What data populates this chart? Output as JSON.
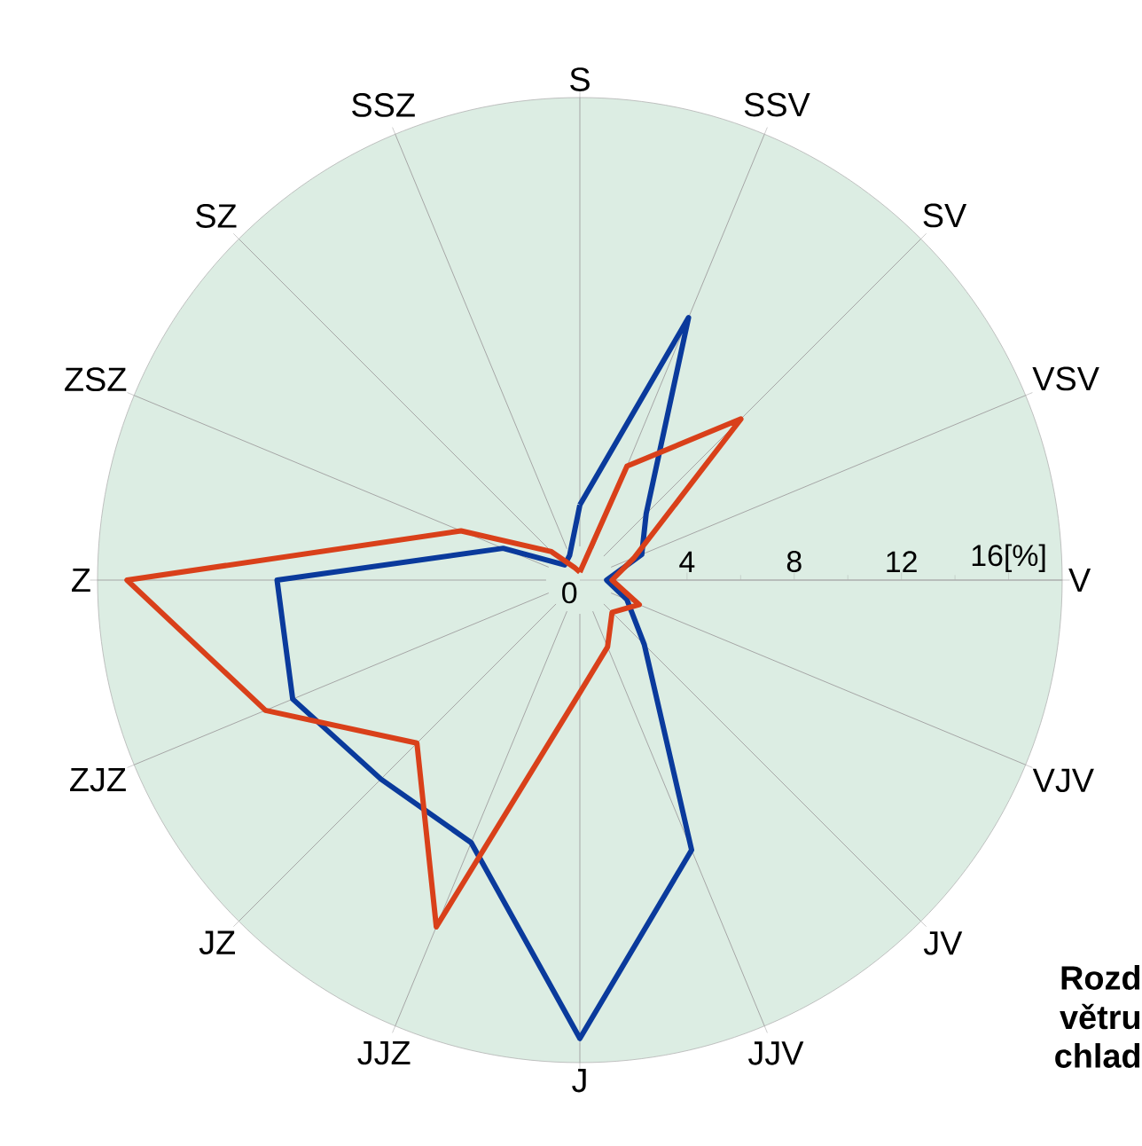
{
  "chart_data": {
    "type": "radar",
    "categories": [
      "S",
      "SSV",
      "SV",
      "VSV",
      "V",
      "VJV",
      "JV",
      "JJV",
      "J",
      "JJZ",
      "JZ",
      "ZJZ",
      "Z",
      "ZSZ",
      "SZ",
      "SSZ"
    ],
    "series": [
      {
        "color": "#0a3a9c",
        "values": [
          2.8,
          10.6,
          3.5,
          2.5,
          1.0,
          1.9,
          3.4,
          10.9,
          17.1,
          10.6,
          10.5,
          11.6,
          11.3,
          3.1,
          0.8,
          1.0
        ]
      },
      {
        "color": "#d9401a",
        "values": [
          0.3,
          4.6,
          8.5,
          2.2,
          1.2,
          2.4,
          1.7,
          2.7,
          4.2,
          14.0,
          8.6,
          12.7,
          16.9,
          4.8,
          1.5,
          0.5
        ]
      }
    ],
    "ylim": [
      0,
      18
    ],
    "yticks": [
      0,
      4,
      8,
      12,
      {
        "value": 16,
        "label": "16[%]"
      }
    ],
    "grid": "x",
    "marker": "none",
    "line_style": "solid",
    "annotations": [
      "Rozd",
      "větru",
      "chlad"
    ]
  }
}
